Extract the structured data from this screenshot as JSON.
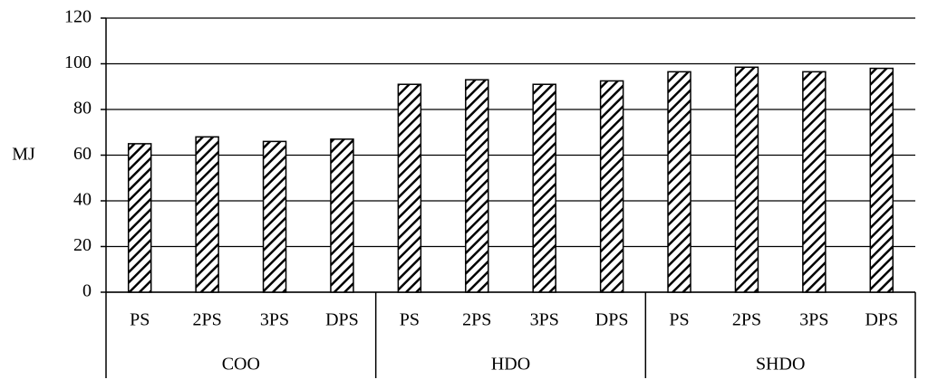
{
  "chart_data": {
    "type": "bar",
    "y_label": "MJ",
    "categories": [
      "PS",
      "2PS",
      "3PS",
      "DPS",
      "PS",
      "2PS",
      "3PS",
      "DPS",
      "PS",
      "2PS",
      "3PS",
      "DPS"
    ],
    "groups": [
      "COO",
      "HDO",
      "SHDO"
    ],
    "values": [
      65,
      68,
      66,
      67,
      91,
      93,
      91,
      92.5,
      96.5,
      98.5,
      96.5,
      98
    ],
    "ylim": [
      0,
      120
    ],
    "yticks": [
      0,
      20,
      40,
      60,
      80,
      100,
      120
    ],
    "grid": true
  }
}
